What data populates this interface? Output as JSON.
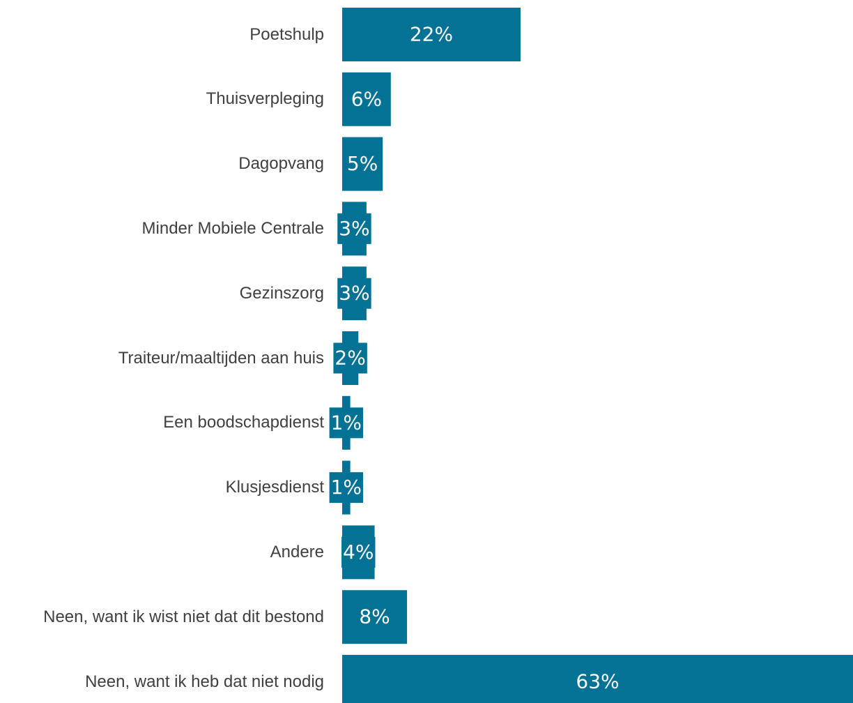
{
  "chart_data": {
    "type": "bar",
    "orientation": "horizontal",
    "color": "#047295",
    "categories": [
      "Poetshulp",
      "Thuisverpleging",
      "Dagopvang",
      "Minder Mobiele Centrale",
      "Gezinszorg",
      "Traiteur/maaltijden aan huis",
      "Een boodschapdienst",
      "Klusjesdienst",
      "Andere",
      "Neen, want ik wist niet dat dit bestond",
      "Neen, want ik heb dat niet nodig"
    ],
    "values": [
      22,
      6,
      5,
      3,
      3,
      2,
      1,
      1,
      4,
      8,
      63
    ],
    "value_labels": [
      "22%",
      "6%",
      "5%",
      "3%",
      "3%",
      "2%",
      "1%",
      "1%",
      "4%",
      "8%",
      "63%"
    ]
  }
}
